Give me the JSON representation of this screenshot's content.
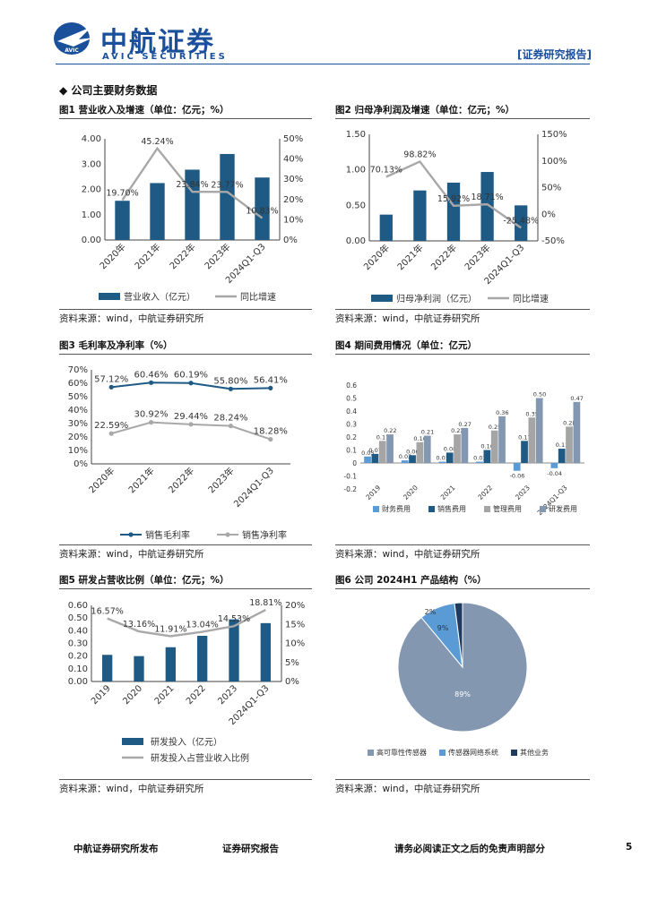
{
  "header": {
    "logo_cn": "中航证券",
    "logo_en": "AVIC SECURITIES",
    "logo_mark": "AVIC",
    "report_tag": "[证券研究报告]"
  },
  "section": {
    "title": "◆ 公司主要财务数据"
  },
  "figures": [
    {
      "title": "图1 营业收入及增速（单位：亿元；%）",
      "source": "资料来源：wind，中航证券研究所"
    },
    {
      "title": "图2 归母净利润及增速（单位：亿元；%）",
      "source": "资料来源：wind，中航证券研究所"
    },
    {
      "title": "图3 毛利率及净利率（%）",
      "source": "资料来源：wind，中航证券研究所"
    },
    {
      "title": "图4 期间费用情况（单位：亿元）",
      "source": "资料来源：wind，中航证券研究所"
    },
    {
      "title": "图5 研发占营收比例（单位：亿元；%）",
      "source": "资料来源：wind，中航证券研究所"
    },
    {
      "title": "图6 公司 2024H1 产品结构（%）",
      "source": "资料来源：wind，中航证券研究所"
    }
  ],
  "footer": {
    "left": "中航证券研究所发布",
    "center": "证券研究报告",
    "right": "请务必阅读正文之后的免责声明部分",
    "page": "5"
  },
  "chart_data": [
    {
      "id": "fig1",
      "type": "bar+line",
      "categories": [
        "2020年",
        "2021年",
        "2022年",
        "2023年",
        "2024Q1-Q3"
      ],
      "bar": {
        "name": "营业收入（亿元）",
        "values": [
          1.55,
          2.25,
          2.78,
          3.4,
          2.47
        ]
      },
      "line": {
        "name": "同比增速",
        "values": [
          19.7,
          45.24,
          23.84,
          23.77,
          10.83
        ],
        "labels": [
          "19.70%",
          "45.24%",
          "23.84%",
          "23.77%",
          "10.83%"
        ]
      },
      "left_axis": {
        "min": 0,
        "max": 4,
        "ticks": [
          "0.00",
          "1.00",
          "2.00",
          "3.00",
          "4.00"
        ]
      },
      "right_axis": {
        "min": 0,
        "max": 50,
        "ticks": [
          "0%",
          "10%",
          "20%",
          "30%",
          "40%",
          "50%"
        ]
      }
    },
    {
      "id": "fig2",
      "type": "bar+line",
      "categories": [
        "2020年",
        "2021年",
        "2022年",
        "2023年",
        "2024Q1-Q3"
      ],
      "bar": {
        "name": "归母净利润（亿元）",
        "values": [
          0.37,
          0.71,
          0.82,
          0.97,
          0.5
        ]
      },
      "line": {
        "name": "同比增速",
        "values": [
          70.13,
          98.82,
          15.92,
          18.71,
          -25.48
        ],
        "labels": [
          "70.13%",
          "98.82%",
          "15.92%",
          "18.71%",
          "-25.48%"
        ]
      },
      "left_axis": {
        "min": 0,
        "max": 1.5,
        "ticks": [
          "0.00",
          "0.50",
          "1.00",
          "1.50"
        ]
      },
      "right_axis": {
        "min": -50,
        "max": 150,
        "ticks": [
          "-50%",
          "0%",
          "50%",
          "100%",
          "150%"
        ]
      }
    },
    {
      "id": "fig3",
      "type": "line",
      "categories": [
        "2020年",
        "2021年",
        "2022年",
        "2023年",
        "2024Q1-Q3"
      ],
      "series": [
        {
          "name": "销售毛利率",
          "values": [
            57.12,
            60.46,
            60.19,
            55.8,
            56.41
          ],
          "labels": [
            "57.12%",
            "60.46%",
            "60.19%",
            "55.80%",
            "56.41%"
          ],
          "color": "#1f5a85"
        },
        {
          "name": "销售净利率",
          "values": [
            22.59,
            30.92,
            29.44,
            28.24,
            18.28
          ],
          "labels": [
            "22.59%",
            "30.92%",
            "29.44%",
            "28.24%",
            "18.28%"
          ],
          "color": "#a8a8a8"
        }
      ],
      "axis": {
        "min": 0,
        "max": 70,
        "ticks": [
          "0%",
          "10%",
          "20%",
          "30%",
          "40%",
          "50%",
          "60%",
          "70%"
        ]
      }
    },
    {
      "id": "fig4",
      "type": "bar",
      "categories": [
        "2019",
        "2020",
        "2021",
        "2022",
        "2023",
        "2024Q1-Q3"
      ],
      "series": [
        {
          "name": "财务费用",
          "values": [
            0.05,
            0.02,
            0.01,
            0.01,
            -0.06,
            -0.04
          ],
          "color": "#5b9bd5",
          "labels": [
            "0.05",
            "0.02",
            "0.01",
            "0.01",
            "-0.06",
            "-0.04"
          ]
        },
        {
          "name": "销售费用",
          "values": [
            0.07,
            0.06,
            0.08,
            0.1,
            0.17,
            0.11
          ],
          "color": "#1f5a85",
          "labels": [
            "0.07",
            "0.06",
            "0.08",
            "0.10",
            "0.17",
            "0.11"
          ]
        },
        {
          "name": "管理费用",
          "values": [
            0.17,
            0.16,
            0.22,
            0.25,
            0.35,
            0.28
          ],
          "color": "#a5a5a5",
          "labels": [
            "0.17",
            "0.16",
            "0.22",
            "0.25",
            "0.35",
            "0.28"
          ]
        },
        {
          "name": "研发费用",
          "values": [
            0.22,
            0.21,
            0.27,
            0.36,
            0.5,
            0.47
          ],
          "color": "#8497b0",
          "labels": [
            "0.22",
            "0.21",
            "0.27",
            "0.36",
            "0.50",
            "0.47"
          ]
        }
      ],
      "axis": {
        "min": -0.2,
        "max": 0.6,
        "ticks": [
          "-0.2",
          "-0.1",
          "0",
          "0.1",
          "0.2",
          "0.3",
          "0.4",
          "0.5",
          "0.6"
        ]
      }
    },
    {
      "id": "fig5",
      "type": "bar+line",
      "categories": [
        "2019",
        "2020",
        "2021",
        "2022",
        "2023",
        "2024Q1-Q3"
      ],
      "bar": {
        "name": "研发投入（亿元）",
        "values": [
          0.21,
          0.2,
          0.27,
          0.36,
          0.49,
          0.46
        ]
      },
      "line": {
        "name": "研发投入占营业收入比例",
        "values": [
          16.57,
          13.16,
          11.91,
          13.04,
          14.53,
          18.81
        ],
        "labels": [
          "16.57%",
          "13.16%",
          "11.91%",
          "13.04%",
          "14.53%",
          "18.81%"
        ]
      },
      "left_axis": {
        "min": 0,
        "max": 0.6,
        "ticks": [
          "0.00",
          "0.10",
          "0.20",
          "0.30",
          "0.40",
          "0.50",
          "0.60"
        ]
      },
      "right_axis": {
        "min": 0,
        "max": 20,
        "ticks": [
          "0%",
          "5%",
          "10%",
          "15%",
          "20%"
        ]
      }
    },
    {
      "id": "fig6",
      "type": "pie",
      "slices": [
        {
          "name": "高可靠性传感器",
          "value": 89,
          "label": "89%",
          "color": "#8497b0"
        },
        {
          "name": "传感器网络系统",
          "value": 9,
          "label": "9%",
          "color": "#5b9bd5"
        },
        {
          "name": "其他业务",
          "value": 2,
          "label": "2%",
          "color": "#1f3a5f"
        }
      ]
    }
  ]
}
